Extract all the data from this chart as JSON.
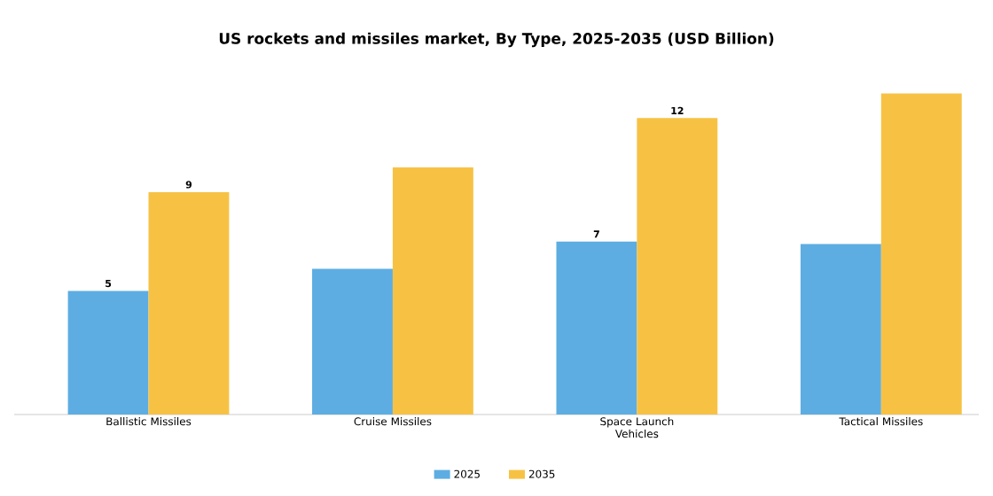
{
  "chart_data": {
    "type": "bar",
    "title": "US rockets and missiles market, By Type, 2025-2035 (USD Billion)",
    "categories": [
      "Ballistic Missiles",
      "Cruise Missiles",
      "Space Launch Vehicles",
      "Tactical Missiles"
    ],
    "series": [
      {
        "name": "2025",
        "color": "#5dade2",
        "values": [
          5,
          5.9,
          7,
          6.9
        ],
        "value_labels": [
          "5",
          null,
          "7",
          null
        ]
      },
      {
        "name": "2035",
        "color": "#f7c244",
        "values": [
          9,
          10,
          12,
          13
        ],
        "value_labels": [
          "9",
          null,
          "12",
          null
        ]
      }
    ],
    "legend": "bottom",
    "grid": false
  }
}
